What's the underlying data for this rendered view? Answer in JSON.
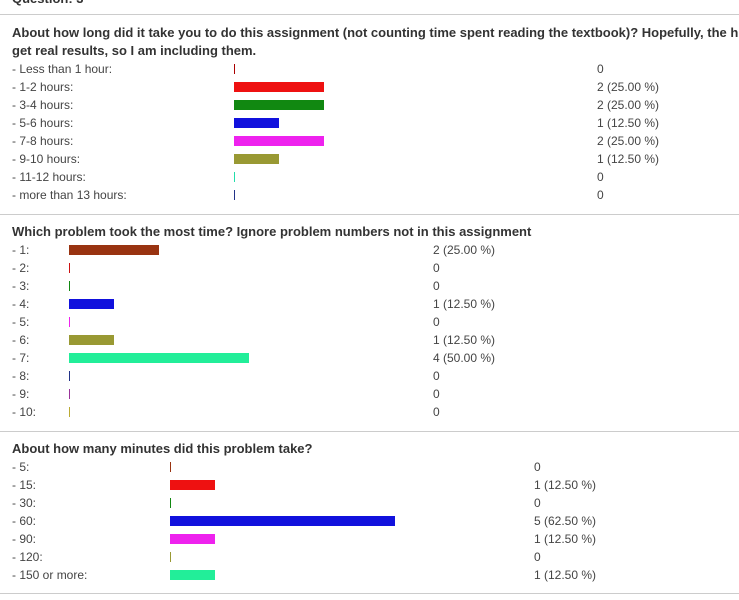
{
  "questions": [
    {
      "id": "q1",
      "title_line1": "About how long did it take you to do this assignment (not counting time spent reading the textbook)? Hopefully, the h",
      "title_line2": "get real results, so I am including them.",
      "options": [
        {
          "label": "- Less than 1 hour:",
          "count": "0",
          "value": 0,
          "color": "#aa0000"
        },
        {
          "label": "- 1-2 hours:",
          "count": "2 (25.00 %)",
          "value": 2,
          "color": "#ee1111"
        },
        {
          "label": "- 3-4 hours:",
          "count": "2 (25.00 %)",
          "value": 2,
          "color": "#118811"
        },
        {
          "label": "- 5-6 hours:",
          "count": "1 (12.50 %)",
          "value": 1,
          "color": "#1111dd"
        },
        {
          "label": "- 7-8 hours:",
          "count": "2 (25.00 %)",
          "value": 2,
          "color": "#ee22ee"
        },
        {
          "label": "- 9-10 hours:",
          "count": "1 (12.50 %)",
          "value": 1,
          "color": "#999933"
        },
        {
          "label": "- 11-12 hours:",
          "count": "0",
          "value": 0,
          "color": "#22ddaa"
        },
        {
          "label": "- more than 13 hours:",
          "count": "0",
          "value": 0,
          "color": "#223388"
        }
      ]
    },
    {
      "id": "q2",
      "title_line1": "Which problem took the most time? Ignore problem numbers not in this assignment",
      "title_line2": "",
      "options": [
        {
          "label": "- 1:",
          "count": "2 (25.00 %)",
          "value": 2,
          "color": "#993311"
        },
        {
          "label": "- 2:",
          "count": "0",
          "value": 0,
          "color": "#cc1111"
        },
        {
          "label": "- 3:",
          "count": "0",
          "value": 0,
          "color": "#118811"
        },
        {
          "label": "- 4:",
          "count": "1 (12.50 %)",
          "value": 1,
          "color": "#1111dd"
        },
        {
          "label": "- 5:",
          "count": "0",
          "value": 0,
          "color": "#ee22ee"
        },
        {
          "label": "- 6:",
          "count": "1 (12.50 %)",
          "value": 1,
          "color": "#999933"
        },
        {
          "label": "- 7:",
          "count": "4 (50.00 %)",
          "value": 4,
          "color": "#22ee99"
        },
        {
          "label": "- 8:",
          "count": "0",
          "value": 0,
          "color": "#223388"
        },
        {
          "label": "- 9:",
          "count": "0",
          "value": 0,
          "color": "#993399"
        },
        {
          "label": "- 10:",
          "count": "0",
          "value": 0,
          "color": "#bbaa33"
        }
      ]
    },
    {
      "id": "q3",
      "title_line1": "About how many minutes did this problem take?",
      "title_line2": "",
      "options": [
        {
          "label": "- 5:",
          "count": "0",
          "value": 0,
          "color": "#993311"
        },
        {
          "label": "- 15:",
          "count": "1 (12.50 %)",
          "value": 1,
          "color": "#ee1111"
        },
        {
          "label": "- 30:",
          "count": "0",
          "value": 0,
          "color": "#118811"
        },
        {
          "label": "- 60:",
          "count": "5 (62.50 %)",
          "value": 5,
          "color": "#1111dd"
        },
        {
          "label": "- 90:",
          "count": "1 (12.50 %)",
          "value": 1,
          "color": "#ee22ee"
        },
        {
          "label": "- 120:",
          "count": "0",
          "value": 0,
          "color": "#999933"
        },
        {
          "label": "- 150 or more:",
          "count": "1 (12.50 %)",
          "value": 1,
          "color": "#22ee99"
        }
      ]
    }
  ]
}
